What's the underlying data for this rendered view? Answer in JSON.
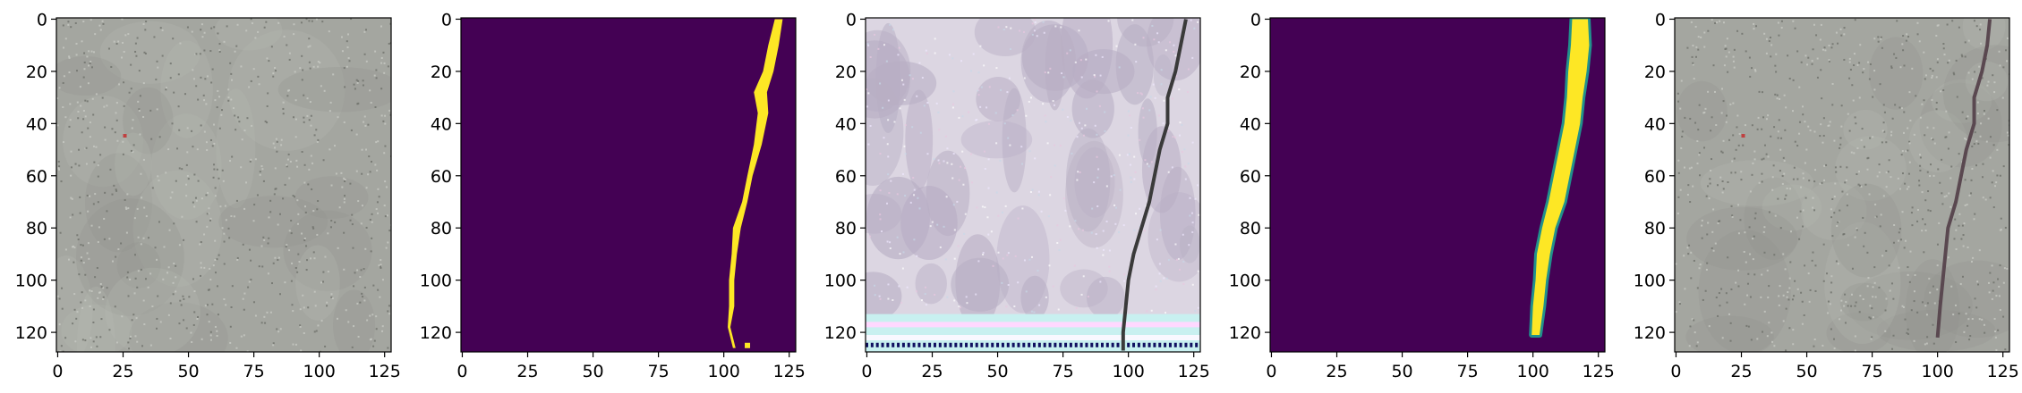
{
  "chart_data": [
    {
      "type": "heatmap",
      "content": "concrete surface photo (gray, no visible crack)",
      "colormap": "rgb",
      "xlim": [
        0,
        127
      ],
      "ylim": [
        127,
        0
      ],
      "xticks": [
        0,
        25,
        50,
        75,
        100,
        125
      ],
      "yticks": [
        0,
        20,
        40,
        60,
        80,
        100,
        120
      ],
      "colors": {
        "base": "#a4a6a0",
        "dark": "#8e918a",
        "light": "#b8bab4"
      }
    },
    {
      "type": "heatmap",
      "content": "binary crack mask",
      "colormap": "viridis",
      "value_range": [
        0,
        1
      ],
      "xlim": [
        0,
        127
      ],
      "ylim": [
        127,
        0
      ],
      "xticks": [
        0,
        25,
        50,
        75,
        100,
        125
      ],
      "yticks": [
        0,
        20,
        40,
        60,
        80,
        100,
        120
      ],
      "colors": {
        "background": "#440154",
        "foreground": "#fde725"
      },
      "crack_path": [
        [
          121,
          0
        ],
        [
          119,
          10
        ],
        [
          117,
          20
        ],
        [
          114,
          28
        ],
        [
          115,
          36
        ],
        [
          113,
          48
        ],
        [
          110,
          60
        ],
        [
          108,
          70
        ],
        [
          105,
          80
        ],
        [
          104,
          90
        ],
        [
          103,
          100
        ],
        [
          103,
          110
        ],
        [
          102,
          118
        ],
        [
          104,
          126
        ]
      ],
      "crack_width": [
        3,
        4,
        4,
        5,
        4,
        3,
        2,
        2,
        3,
        2,
        2,
        2,
        1,
        1
      ]
    },
    {
      "type": "heatmap",
      "content": "generated image with crack and artifact band",
      "colormap": "rgb",
      "xlim": [
        0,
        127
      ],
      "ylim": [
        127,
        0
      ],
      "xticks": [
        0,
        25,
        50,
        75,
        100,
        125
      ],
      "yticks": [
        0,
        20,
        40,
        60,
        80,
        100,
        120
      ],
      "colors": {
        "base": "#dcd6e2",
        "blotch": "#b8aec4",
        "crack": "#3a3a3a",
        "band1": "#c8f0f0",
        "band2": "#ffd8ff"
      },
      "crack_path": [
        [
          122,
          0
        ],
        [
          120,
          10
        ],
        [
          118,
          20
        ],
        [
          115,
          30
        ],
        [
          115,
          40
        ],
        [
          112,
          50
        ],
        [
          110,
          60
        ],
        [
          108,
          70
        ],
        [
          105,
          80
        ],
        [
          102,
          90
        ],
        [
          100,
          100
        ],
        [
          99,
          110
        ],
        [
          98,
          120
        ],
        [
          98,
          127
        ]
      ]
    },
    {
      "type": "heatmap",
      "content": "predicted crack probability map",
      "colormap": "viridis",
      "value_range": [
        0,
        1
      ],
      "xlim": [
        0,
        127
      ],
      "ylim": [
        127,
        0
      ],
      "xticks": [
        0,
        25,
        50,
        75,
        100,
        125
      ],
      "yticks": [
        0,
        20,
        40,
        60,
        80,
        100,
        120
      ],
      "colors": {
        "background": "#440154",
        "foreground": "#fde725",
        "edge": "#21918c"
      },
      "crack_path": [
        [
          118,
          0
        ],
        [
          118,
          10
        ],
        [
          117,
          20
        ],
        [
          116,
          30
        ],
        [
          115,
          40
        ],
        [
          113,
          50
        ],
        [
          111,
          60
        ],
        [
          109,
          70
        ],
        [
          106,
          80
        ],
        [
          104,
          90
        ],
        [
          103,
          100
        ],
        [
          102,
          110
        ],
        [
          101,
          121
        ]
      ],
      "crack_width": [
        6,
        7,
        7,
        6,
        6,
        6,
        6,
        6,
        5,
        5,
        4,
        4,
        3
      ]
    },
    {
      "type": "heatmap",
      "content": "concrete surface photo with overlaid crack",
      "colormap": "rgb",
      "xlim": [
        0,
        127
      ],
      "ylim": [
        127,
        0
      ],
      "xticks": [
        0,
        25,
        50,
        75,
        100,
        125
      ],
      "yticks": [
        0,
        20,
        40,
        60,
        80,
        100,
        120
      ],
      "colors": {
        "base": "#a4a6a0",
        "dark": "#8e918a",
        "light": "#b8bab4",
        "crack": "#5a4850"
      },
      "crack_path": [
        [
          120,
          0
        ],
        [
          119,
          10
        ],
        [
          117,
          20
        ],
        [
          114,
          30
        ],
        [
          114,
          40
        ],
        [
          111,
          50
        ],
        [
          109,
          60
        ],
        [
          107,
          70
        ],
        [
          104,
          80
        ],
        [
          103,
          90
        ],
        [
          102,
          100
        ],
        [
          101,
          110
        ],
        [
          100,
          122
        ]
      ]
    }
  ]
}
